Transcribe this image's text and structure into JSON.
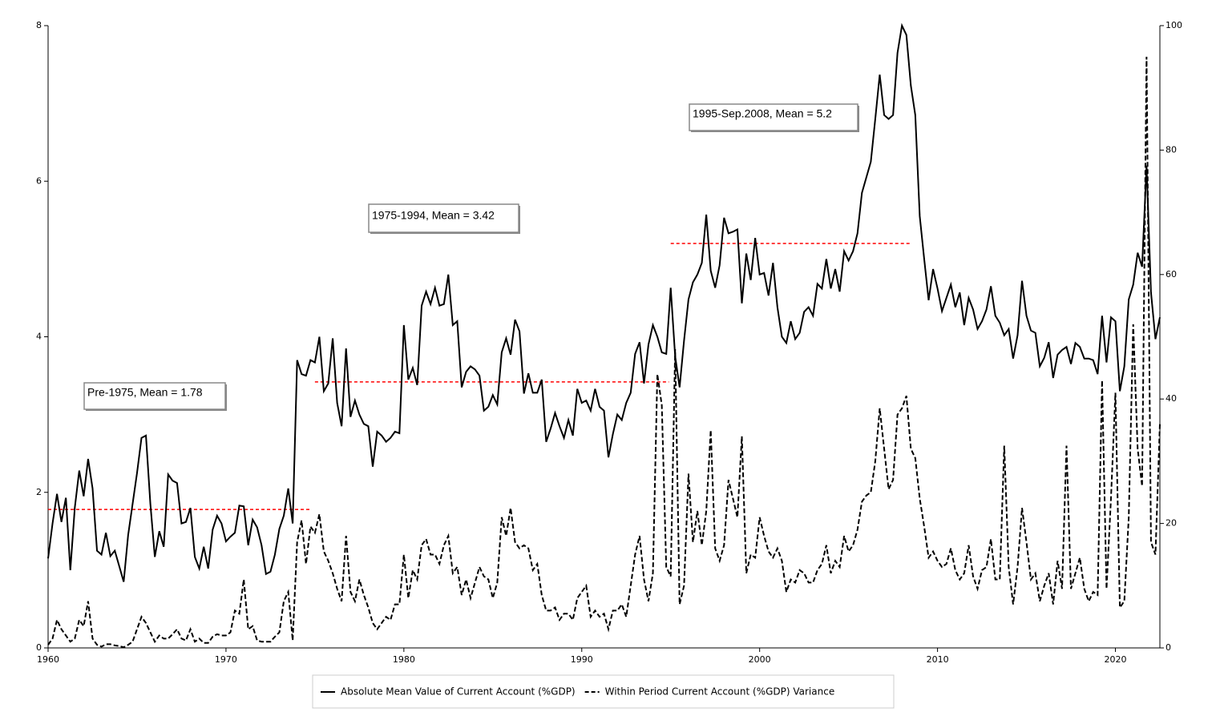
{
  "chart_data": {
    "type": "line",
    "x": [
      1960,
      1960.25,
      1960.5,
      1960.75,
      1961,
      1961.25,
      1961.5,
      1961.75,
      1962,
      1962.25,
      1962.5,
      1962.75,
      1963,
      1963.25,
      1963.5,
      1963.75,
      1964,
      1964.25,
      1964.5,
      1964.75,
      1965,
      1965.25,
      1965.5,
      1965.75,
      1966,
      1966.25,
      1966.5,
      1966.75,
      1967,
      1967.25,
      1967.5,
      1967.75,
      1968,
      1968.25,
      1968.5,
      1968.75,
      1969,
      1969.25,
      1969.5,
      1969.75,
      1970,
      1970.25,
      1970.5,
      1970.75,
      1971,
      1971.25,
      1971.5,
      1971.75,
      1972,
      1972.25,
      1972.5,
      1972.75,
      1973,
      1973.25,
      1973.5,
      1973.75,
      1974,
      1974.25,
      1974.5,
      1974.75,
      1975,
      1975.25,
      1975.5,
      1975.75,
      1976,
      1976.25,
      1976.5,
      1976.75,
      1977,
      1977.25,
      1977.5,
      1977.75,
      1978,
      1978.25,
      1978.5,
      1978.75,
      1979,
      1979.25,
      1979.5,
      1979.75,
      1980,
      1980.25,
      1980.5,
      1980.75,
      1981,
      1981.25,
      1981.5,
      1981.75,
      1982,
      1982.25,
      1982.5,
      1982.75,
      1983,
      1983.25,
      1983.5,
      1983.75,
      1984,
      1984.25,
      1984.5,
      1984.75,
      1985,
      1985.25,
      1985.5,
      1985.75,
      1986,
      1986.25,
      1986.5,
      1986.75,
      1987,
      1987.25,
      1987.5,
      1987.75,
      1988,
      1988.25,
      1988.5,
      1988.75,
      1989,
      1989.25,
      1989.5,
      1989.75,
      1990,
      1990.25,
      1990.5,
      1990.75,
      1991,
      1991.25,
      1991.5,
      1991.75,
      1992,
      1992.25,
      1992.5,
      1992.75,
      1993,
      1993.25,
      1993.5,
      1993.75,
      1994,
      1994.25,
      1994.5,
      1994.75,
      1995,
      1995.25,
      1995.5,
      1995.75,
      1996,
      1996.25,
      1996.5,
      1996.75,
      1997,
      1997.25,
      1997.5,
      1997.75,
      1998,
      1998.25,
      1998.5,
      1998.75,
      1999,
      1999.25,
      1999.5,
      1999.75,
      2000,
      2000.25,
      2000.5,
      2000.75,
      2001,
      2001.25,
      2001.5,
      2001.75,
      2002,
      2002.25,
      2002.5,
      2002.75,
      2003,
      2003.25,
      2003.5,
      2003.75,
      2004,
      2004.25,
      2004.5,
      2004.75,
      2005,
      2005.25,
      2005.5,
      2005.75,
      2006,
      2006.25,
      2006.5,
      2006.75,
      2007,
      2007.25,
      2007.5,
      2007.75,
      2008,
      2008.25,
      2008.5,
      2008.75,
      2009,
      2009.25,
      2009.5,
      2009.75,
      2010,
      2010.25,
      2010.5,
      2010.75,
      2011,
      2011.25,
      2011.5,
      2011.75,
      2012,
      2012.25,
      2012.5,
      2012.75,
      2013,
      2013.25,
      2013.5,
      2013.75,
      2014,
      2014.25,
      2014.5,
      2014.75,
      2015,
      2015.25,
      2015.5,
      2015.75,
      2016,
      2016.25,
      2016.5,
      2016.75,
      2017,
      2017.25,
      2017.5,
      2017.75,
      2018,
      2018.25,
      2018.5,
      2018.75,
      2019,
      2019.25,
      2019.5,
      2019.75,
      2020,
      2020.25,
      2020.5,
      2020.75,
      2021,
      2021.25,
      2021.5,
      2021.75,
      2022,
      2022.25,
      2022.5
    ],
    "xlim": [
      1960,
      2022.5
    ],
    "xticks": [
      1960,
      1970,
      1980,
      1990,
      2000,
      2010,
      2020
    ],
    "ylim": [
      0,
      8
    ],
    "yticks": [
      0,
      2,
      4,
      6,
      8
    ],
    "y2lim": [
      0,
      100
    ],
    "y2ticks": [
      0,
      20,
      40,
      60,
      80,
      100
    ],
    "legend": "bottom",
    "series": [
      {
        "name": "Absolute Mean Value of Current Account (%GDP)",
        "color": "#000000",
        "dashed": false,
        "values": [
          1.15,
          1.6,
          1.98,
          1.62,
          1.93,
          1.0,
          1.8,
          2.28,
          1.95,
          2.43,
          2.05,
          1.25,
          1.2,
          1.48,
          1.18,
          1.25,
          1.05,
          0.85,
          1.45,
          1.85,
          2.25,
          2.7,
          2.73,
          1.85,
          1.17,
          1.5,
          1.3,
          2.23,
          2.15,
          2.12,
          1.6,
          1.62,
          1.8,
          1.17,
          1.02,
          1.3,
          1.02,
          1.52,
          1.7,
          1.6,
          1.37,
          1.43,
          1.48,
          1.83,
          1.82,
          1.32,
          1.65,
          1.55,
          1.32,
          0.95,
          0.98,
          1.2,
          1.53,
          1.7,
          2.05,
          1.6,
          3.7,
          3.52,
          3.5,
          3.7,
          3.67,
          4.0,
          3.3,
          3.4,
          3.98,
          3.15,
          2.85,
          3.85,
          2.97,
          3.18,
          3.0,
          2.88,
          2.85,
          2.33,
          2.78,
          2.73,
          2.65,
          2.7,
          2.78,
          2.76,
          4.15,
          3.45,
          3.6,
          3.38,
          4.4,
          4.58,
          4.42,
          4.63,
          4.4,
          4.42,
          4.8,
          4.15,
          4.2,
          3.35,
          3.55,
          3.62,
          3.58,
          3.5,
          3.05,
          3.1,
          3.25,
          3.13,
          3.8,
          3.98,
          3.77,
          4.22,
          4.07,
          3.27,
          3.53,
          3.28,
          3.28,
          3.45,
          2.65,
          2.82,
          3.02,
          2.85,
          2.7,
          2.93,
          2.73,
          3.33,
          3.15,
          3.18,
          3.05,
          3.33,
          3.1,
          3.05,
          2.45,
          2.75,
          3.0,
          2.93,
          3.15,
          3.28,
          3.78,
          3.93,
          3.4,
          3.9,
          4.15,
          4.0,
          3.8,
          3.78,
          4.63,
          3.75,
          3.35,
          3.95,
          4.48,
          4.7,
          4.8,
          4.95,
          5.57,
          4.85,
          4.63,
          4.92,
          5.53,
          5.33,
          5.35,
          5.38,
          4.43,
          5.07,
          4.73,
          5.27,
          4.8,
          4.82,
          4.53,
          4.95,
          4.38,
          4.0,
          3.92,
          4.2,
          3.97,
          4.05,
          4.32,
          4.38,
          4.27,
          4.68,
          4.62,
          5.0,
          4.62,
          4.87,
          4.58,
          5.1,
          4.98,
          5.1,
          5.33,
          5.85,
          6.05,
          6.25,
          6.8,
          7.37,
          6.85,
          6.8,
          6.85,
          7.65,
          8.0,
          7.88,
          7.23,
          6.85,
          5.55,
          5.0,
          4.47,
          4.87,
          4.62,
          4.33,
          4.5,
          4.67,
          4.38,
          4.57,
          4.15,
          4.5,
          4.35,
          4.1,
          4.2,
          4.35,
          4.65,
          4.27,
          4.18,
          4.02,
          4.1,
          3.72,
          4.02,
          4.72,
          4.27,
          4.08,
          4.05,
          3.62,
          3.73,
          3.93,
          3.47,
          3.77,
          3.83,
          3.87,
          3.65,
          3.92,
          3.87,
          3.72,
          3.72,
          3.7,
          3.52,
          4.27,
          3.67,
          4.25,
          4.2,
          3.3,
          3.62,
          4.48,
          4.67,
          5.08,
          4.9,
          6.2,
          4.57,
          3.97,
          4.25
        ]
      },
      {
        "name": "Within Period Current Account (%GDP) Variance",
        "color": "#000000",
        "dashed": true,
        "axis": "y2",
        "values": [
          0.5,
          1.5,
          4.5,
          3,
          2,
          1,
          1.5,
          4.5,
          3.5,
          7.5,
          1.5,
          0.5,
          0.2,
          0.6,
          0.6,
          0.4,
          0.3,
          0.1,
          0.5,
          1,
          3,
          5,
          4,
          2.5,
          1,
          2,
          1.5,
          1.5,
          2.2,
          3,
          1.5,
          1.2,
          3,
          1,
          1.5,
          0.8,
          0.8,
          1.8,
          2.2,
          2,
          2,
          2.5,
          6,
          5.5,
          11,
          3,
          3.5,
          1.2,
          1,
          1,
          1,
          1.8,
          2.5,
          7.5,
          9,
          1.2,
          17,
          20.5,
          13.5,
          19.5,
          18.5,
          21.5,
          15.5,
          14,
          12,
          9.5,
          7.5,
          18,
          9,
          7.5,
          11,
          8.5,
          6.5,
          4,
          3,
          4,
          5,
          4.5,
          7,
          7,
          15,
          8,
          12.5,
          11,
          16.5,
          17.5,
          15,
          15,
          13.5,
          16.5,
          18,
          12,
          13,
          8.5,
          11,
          8,
          10.5,
          13,
          11.5,
          11,
          8,
          10.5,
          21,
          18,
          22.5,
          17,
          16,
          16.5,
          16,
          12.5,
          13.5,
          8.5,
          6,
          6,
          6.5,
          4.5,
          5.5,
          5.5,
          4.5,
          8,
          9,
          10,
          5,
          6,
          5,
          5.5,
          3,
          6,
          6,
          7,
          5,
          10,
          15,
          18,
          11,
          7.5,
          12,
          44,
          39,
          13,
          11.5,
          48,
          7,
          10,
          28,
          17,
          22,
          16.5,
          22,
          35,
          16,
          14,
          16.5,
          27,
          24,
          21,
          34,
          12,
          15,
          14.5,
          21,
          18,
          15.5,
          14.5,
          16,
          14,
          9,
          11,
          10.5,
          12.5,
          12,
          10.5,
          10.5,
          12.5,
          13.5,
          16.5,
          12,
          14,
          13,
          18,
          15.5,
          16.5,
          19,
          23.5,
          24.5,
          25,
          30,
          38.5,
          32,
          25.5,
          27,
          37.5,
          38.5,
          40.5,
          32,
          30.5,
          24,
          19.5,
          14.5,
          15.5,
          14,
          13,
          13.5,
          16,
          12.5,
          11,
          12,
          16.5,
          11.5,
          9.5,
          12.5,
          13,
          17.5,
          11,
          11,
          32.5,
          13,
          7,
          13,
          22.5,
          17,
          11,
          12,
          7.5,
          10,
          12,
          7,
          14,
          9.5,
          32.5,
          9.5,
          12,
          14.5,
          9.5,
          7.5,
          9,
          8.5,
          43,
          9.5,
          24,
          41,
          6.5,
          7.5,
          21,
          52,
          32,
          26,
          95,
          17,
          15,
          36
        ]
      }
    ],
    "mean_lines": [
      {
        "xrange": [
          1960,
          1974.75
        ],
        "value": 1.78,
        "color": "#ff0000"
      },
      {
        "xrange": [
          1975,
          1994.9
        ],
        "value": 3.42,
        "color": "#ff0000"
      },
      {
        "xrange": [
          1995,
          2008.45
        ],
        "value": 5.2,
        "color": "#ff0000"
      }
    ],
    "annotations": [
      "Pre-1975, Mean = 1.78",
      "1975-1994, Mean = 3.42",
      "1995-Sep.2008, Mean = 5.2"
    ]
  }
}
